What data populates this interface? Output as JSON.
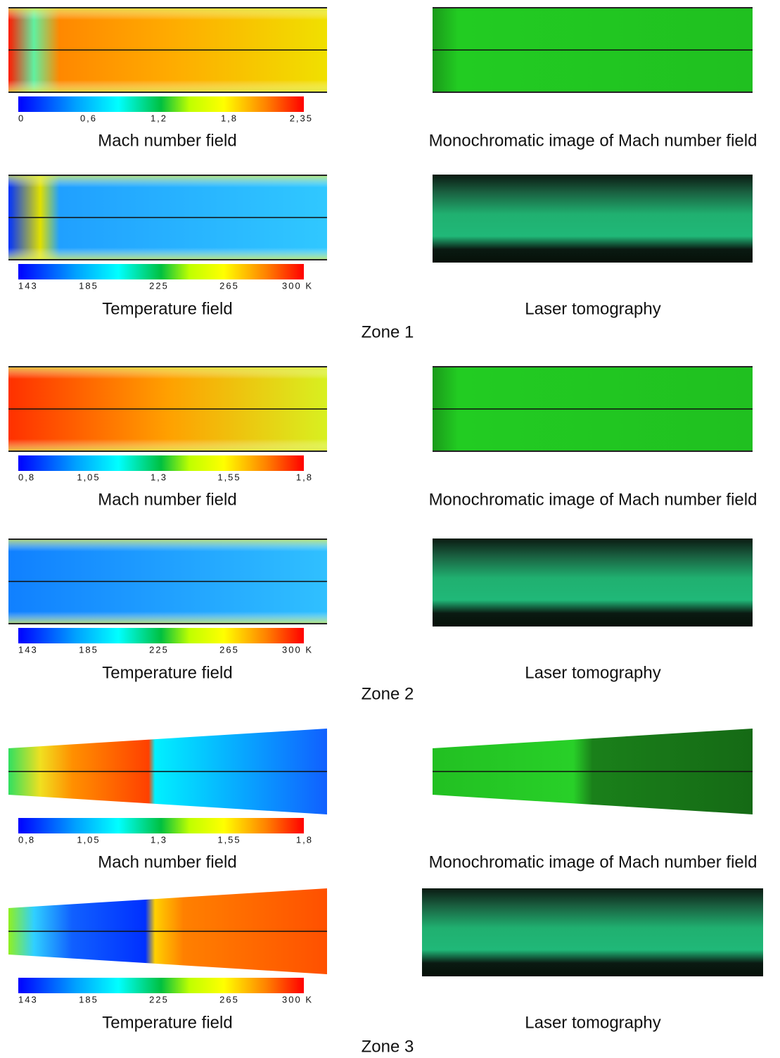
{
  "zones": [
    {
      "label": "Zone 1",
      "mach": {
        "caption": "Mach number field",
        "scale": [
          "0",
          "0,6",
          "1,2",
          "1,8",
          "2,35"
        ]
      },
      "mono_caption": "Monochromatic image of Mach number field",
      "temperature": {
        "caption": "Temperature field",
        "scale": [
          "143",
          "185",
          "225",
          "265",
          "300 K"
        ]
      },
      "laser_caption": "Laser tomography"
    },
    {
      "label": "Zone 2",
      "mach": {
        "caption": "Mach number field",
        "scale": [
          "0,8",
          "1,05",
          "1,3",
          "1,55",
          "1,8"
        ]
      },
      "mono_caption": "Monochromatic image of Mach number field",
      "temperature": {
        "caption": "Temperature field",
        "scale": [
          "143",
          "185",
          "225",
          "265",
          "300 K"
        ]
      },
      "laser_caption": "Laser tomography"
    },
    {
      "label": "Zone 3",
      "mach": {
        "caption": "Mach number field",
        "scale": [
          "0,8",
          "1,05",
          "1,3",
          "1,55",
          "1,8"
        ]
      },
      "mono_caption": "Monochromatic image of Mach number field",
      "temperature": {
        "caption": "Temperature field",
        "scale": [
          "143",
          "185",
          "225",
          "265",
          "300 K"
        ]
      },
      "laser_caption": "Laser tomography"
    }
  ]
}
